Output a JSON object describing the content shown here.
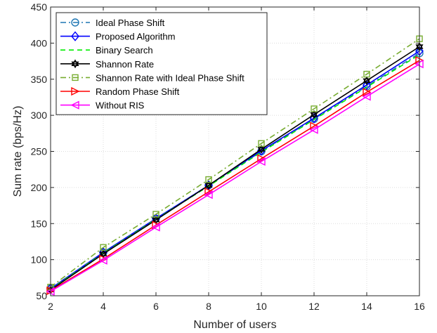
{
  "chart_data": {
    "type": "line",
    "xlabel": "Number of users",
    "ylabel": "Sum rate (bps/Hz)",
    "xlim": [
      2,
      16
    ],
    "ylim": [
      50,
      450
    ],
    "xticks": [
      2,
      4,
      6,
      8,
      10,
      12,
      14,
      16
    ],
    "yticks": [
      50,
      100,
      150,
      200,
      250,
      300,
      350,
      400,
      450
    ],
    "grid": true,
    "legend_position": "top-left",
    "x": [
      2,
      4,
      6,
      8,
      10,
      12,
      14,
      16
    ],
    "series": [
      {
        "name": "Ideal Phase Shift",
        "color": "#1f77b4",
        "dash": "8,4,2,4",
        "marker": "circle",
        "values": [
          60,
          110,
          157,
          203,
          250,
          295,
          340,
          386
        ]
      },
      {
        "name": "Proposed Algorithm",
        "color": "#0000ff",
        "dash": "",
        "marker": "diamond",
        "values": [
          60,
          110,
          157,
          203,
          251,
          296,
          342,
          389
        ]
      },
      {
        "name": "Binary Search",
        "color": "#00ee00",
        "dash": "7,5",
        "marker": "none",
        "values": [
          59,
          109,
          156,
          202,
          249,
          294,
          339,
          384
        ]
      },
      {
        "name": "Shannon Rate",
        "color": "#000000",
        "dash": "",
        "marker": "hexagram",
        "values": [
          58,
          108,
          155,
          203,
          253,
          301,
          348,
          395
        ]
      },
      {
        "name": "Shannon Rate with Ideal Phase Shift",
        "color": "#77ac30",
        "dash": "8,4,2,4",
        "marker": "square",
        "values": [
          62,
          117,
          163,
          211,
          261,
          309,
          357,
          406
        ]
      },
      {
        "name": "Random Phase Shift",
        "color": "#ff0000",
        "dash": "",
        "marker": "triangle-right",
        "values": [
          57,
          101,
          148,
          194,
          240,
          285,
          332,
          376
        ]
      },
      {
        "name": "Without RIS",
        "color": "#ff00ff",
        "dash": "",
        "marker": "triangle-left",
        "values": [
          56,
          99,
          145,
          190,
          236,
          280,
          326,
          371
        ]
      }
    ]
  }
}
